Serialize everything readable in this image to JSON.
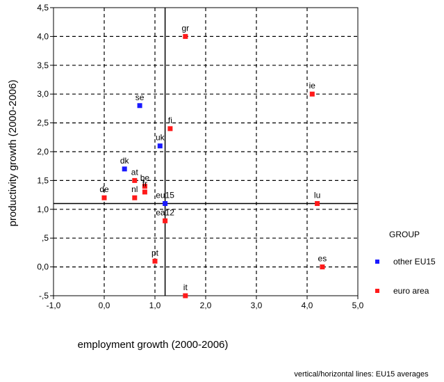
{
  "chart_data": {
    "type": "scatter",
    "xlabel": "employment growth (2000-2006)",
    "ylabel": "productivity growth (2000-2006)",
    "xlim": [
      -1.0,
      5.0
    ],
    "ylim": [
      -0.5,
      4.5
    ],
    "x_ticks": [
      -1.0,
      0.0,
      1.0,
      2.0,
      3.0,
      4.0,
      5.0
    ],
    "x_tick_labels": [
      "-1,0",
      "0,0",
      "1,0",
      "2,0",
      "3,0",
      "4,0",
      "5,0"
    ],
    "y_ticks": [
      -0.5,
      0.0,
      0.5,
      1.0,
      1.5,
      2.0,
      2.5,
      3.0,
      3.5,
      4.0,
      4.5
    ],
    "y_tick_labels": [
      "-,5",
      "0,0",
      ",5",
      "1,0",
      "1,5",
      "2,0",
      "2,5",
      "3,0",
      "3,5",
      "4,0",
      "4,5"
    ],
    "grid": true,
    "grid_style": "dashed",
    "legend_title": "GROUP",
    "legend_position": "right",
    "series": [
      {
        "name": "other EU15",
        "color": "#1a1aff",
        "points": [
          {
            "label": "se",
            "x": 0.7,
            "y": 2.8
          },
          {
            "label": "uk",
            "x": 1.1,
            "y": 2.1
          },
          {
            "label": "dk",
            "x": 0.4,
            "y": 1.7
          },
          {
            "label": "eu15",
            "x": 1.2,
            "y": 1.1
          }
        ]
      },
      {
        "name": "euro area",
        "color": "#ff1a1a",
        "points": [
          {
            "label": "gr",
            "x": 1.6,
            "y": 4.0
          },
          {
            "label": "ie",
            "x": 4.1,
            "y": 3.0
          },
          {
            "label": "fi",
            "x": 1.3,
            "y": 2.4
          },
          {
            "label": "at",
            "x": 0.6,
            "y": 1.5
          },
          {
            "label": "be",
            "x": 0.8,
            "y": 1.4
          },
          {
            "label": "fr",
            "x": 0.8,
            "y": 1.3
          },
          {
            "label": "de",
            "x": 0.0,
            "y": 1.2
          },
          {
            "label": "nl",
            "x": 0.6,
            "y": 1.2
          },
          {
            "label": "lu",
            "x": 4.2,
            "y": 1.1
          },
          {
            "label": "ea12",
            "x": 1.2,
            "y": 0.8
          },
          {
            "label": "pt",
            "x": 1.0,
            "y": 0.1
          },
          {
            "label": "es",
            "x": 4.3,
            "y": 0.0
          },
          {
            "label": "it",
            "x": 1.6,
            "y": -0.5
          }
        ]
      }
    ],
    "reference_lines": {
      "x": 1.2,
      "y": 1.1
    },
    "note": "vertical/horizontal lines: EU15 averages"
  }
}
